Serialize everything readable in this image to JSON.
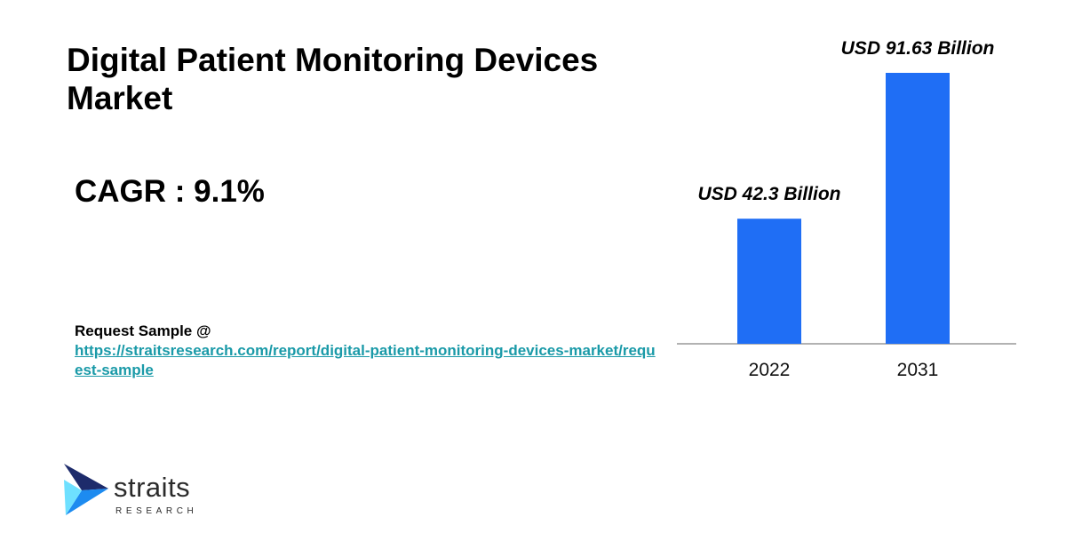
{
  "title": "Digital Patient Monitoring Devices Market",
  "cagr_text": "CAGR : 9.1%",
  "request": {
    "label": "Request Sample @",
    "link": "https://straitsresearch.com/report/digital-patient-monitoring-devices-market/request-sample"
  },
  "logo": {
    "name": "straits",
    "sub": "RESEARCH",
    "icon": "arrow-chevron-icon",
    "colors": [
      "#1d2b6b",
      "#1d8bf0",
      "#6ee0ff"
    ]
  },
  "chart_data": {
    "type": "bar",
    "categories": [
      "2022",
      "2031"
    ],
    "values": [
      42.3,
      91.63
    ],
    "data_labels": [
      "USD 42.3 Billion",
      "USD 91.63 Billion"
    ],
    "ylim": [
      0,
      91.63
    ],
    "bar_color": "#1f6ef5",
    "grid": false,
    "legend": "none"
  }
}
